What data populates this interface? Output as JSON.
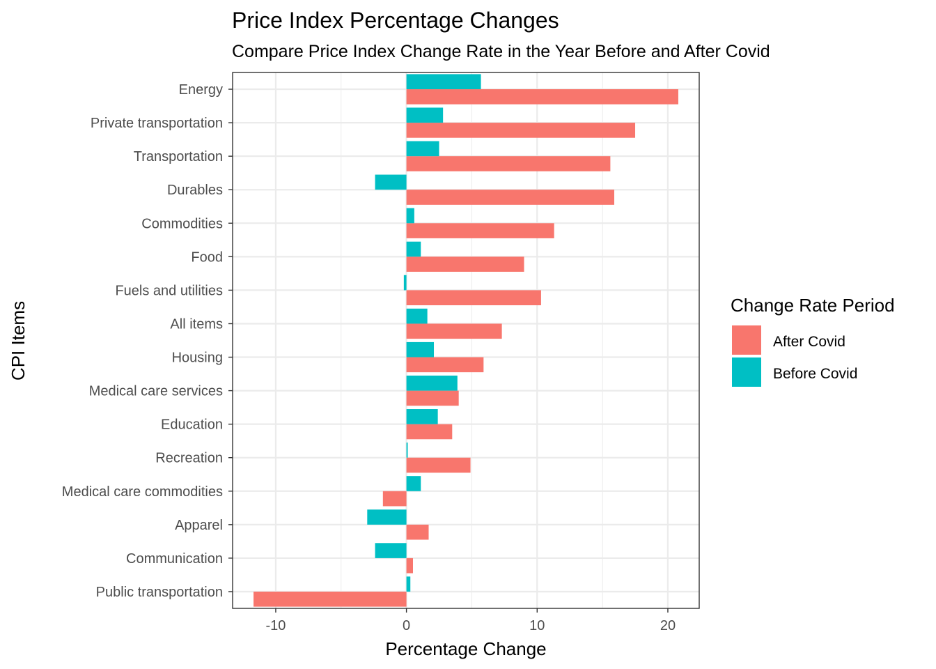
{
  "chart_data": {
    "type": "bar",
    "orientation": "horizontal",
    "title": "Price Index Percentage Changes",
    "subtitle": "Compare Price Index Change Rate in the Year Before and After Covid",
    "xlabel": "Percentage Change",
    "ylabel": "CPI Items",
    "xlim": [
      -13.3,
      22.4
    ],
    "xticks": [
      -10,
      0,
      10,
      20
    ],
    "xtick_labels": [
      "-10",
      "0",
      "10",
      "20"
    ],
    "grid": true,
    "legend": {
      "title": "Change Rate Period",
      "placement": "right"
    },
    "categories": [
      "Energy",
      "Private transportation",
      "Transportation",
      "Durables",
      "Commodities",
      "Food",
      "Fuels and utilities",
      "All items",
      "Housing",
      "Medical care services",
      "Education",
      "Recreation",
      "Medical care commodities",
      "Apparel",
      "Communication",
      "Public transportation"
    ],
    "series": [
      {
        "name": "After Covid",
        "color": "#F8766D",
        "values": [
          20.8,
          17.5,
          15.6,
          15.9,
          11.3,
          9.0,
          10.3,
          7.3,
          5.9,
          4.0,
          3.5,
          4.9,
          -1.8,
          1.7,
          0.5,
          -11.7
        ]
      },
      {
        "name": "Before Covid",
        "color": "#00BFC4",
        "values": [
          5.7,
          2.8,
          2.5,
          -2.4,
          0.6,
          1.1,
          -0.2,
          1.6,
          2.1,
          3.9,
          2.4,
          0.1,
          1.1,
          -3.0,
          -2.4,
          0.3
        ]
      }
    ]
  }
}
